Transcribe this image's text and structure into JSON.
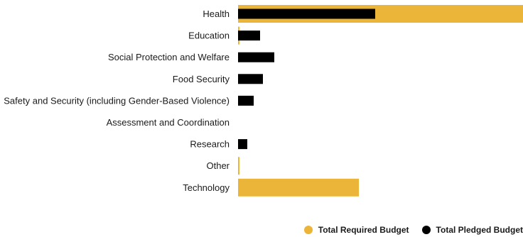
{
  "chart_data": {
    "type": "bar",
    "orientation": "horizontal",
    "categories": [
      "Health",
      "Education",
      "Social Protection and Welfare",
      "Food Security",
      "Safety and Security (including Gender-Based Violence)",
      "Assessment and Coordination",
      "Research",
      "Other",
      "Technology"
    ],
    "series": [
      {
        "name": "Total Required Budget",
        "color": "#ebb53a",
        "values": [
          401,
          2,
          0,
          0,
          0,
          0,
          0,
          2,
          170
        ]
      },
      {
        "name": "Total Pledged Budget",
        "color": "#000000",
        "values": [
          193,
          31,
          51,
          35,
          22,
          0,
          13,
          0,
          0
        ]
      }
    ],
    "xlim": [
      0,
      401
    ],
    "grid": false,
    "legend_position": "bottom-right"
  }
}
